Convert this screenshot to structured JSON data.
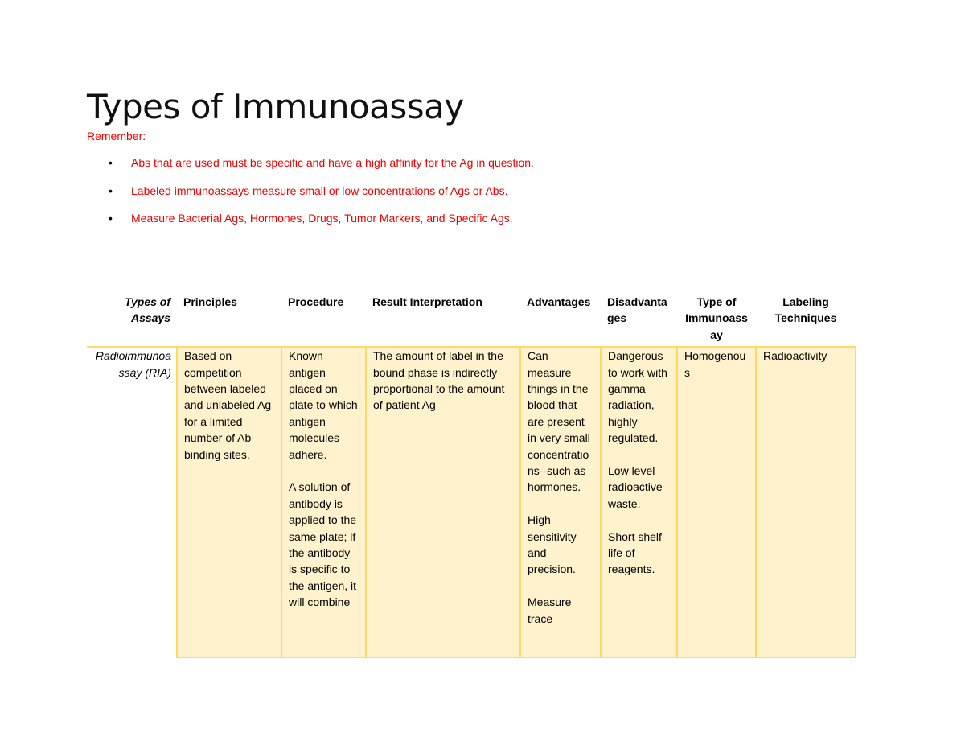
{
  "title": "Types of Immunoassay",
  "remember": {
    "label": "Remember:",
    "bullets": [
      [
        "Abs that are used must be specific and have a high affinity for the Ag in question."
      ],
      [
        "Labeled immunoassays measure ",
        "small",
        " or ",
        "low concentrations ",
        "of Ags or Abs."
      ],
      [
        "Measure Bacterial Ags, Hormones, Drugs, Tumor Markers, and Specific Ags."
      ]
    ]
  },
  "table": {
    "header": [
      "Types of Assays",
      "Principles",
      "Procedure",
      "Result Interpretation",
      "Advantages",
      "Disadvantages",
      "Type of Immunoassay",
      "Labeling Techniques"
    ],
    "rows": [
      [
        [
          "Radioimmunoassay (RIA)"
        ],
        [
          "Based on competition between labeled and unlabeled Ag for a limited number of Ab-binding sites."
        ],
        [
          "Known antigen placed on plate to which antigen molecules adhere.",
          "A solution of antibody is applied to the same plate; if the antibody is specific to the antigen, it will combine"
        ],
        [
          "The amount of label in the bound phase is indirectly proportional to the amount of patient Ag"
        ],
        [
          "Can measure things in the blood that are present in very small concentrations--such as hormones.",
          "High sensitivity and precision.",
          "Measure trace"
        ],
        [
          "Dangerous to work with gamma radiation, highly regulated.",
          "Low level radioactive waste.",
          "Short shelf life of reagents."
        ],
        [
          "Homogenous"
        ],
        [
          "Radioactivity"
        ]
      ]
    ]
  }
}
